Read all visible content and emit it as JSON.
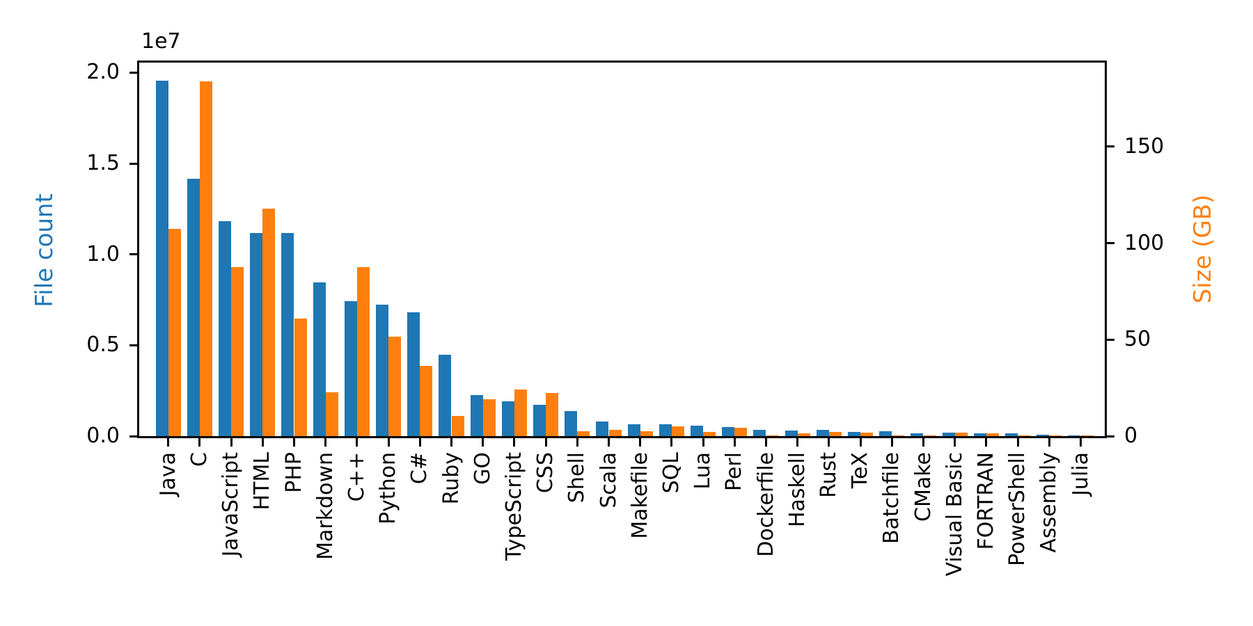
{
  "figure": {
    "offset_text": "1e7",
    "left_axis": {
      "label": "File count",
      "label_color": "#1f77b4",
      "tick_labels": [
        "0.0",
        "0.5",
        "1.0",
        "1.5",
        "2.0"
      ],
      "tick_values": [
        0,
        5000000,
        10000000,
        15000000,
        20000000
      ]
    },
    "right_axis": {
      "label": "Size (GB)",
      "label_color": "#ff7f0e",
      "tick_labels": [
        "0",
        "50",
        "100",
        "150"
      ],
      "tick_values": [
        0,
        50,
        100,
        150
      ]
    }
  },
  "chart_data": {
    "type": "bar",
    "title": "",
    "xlabel": "",
    "grid": false,
    "legend": "none",
    "categories": [
      "Java",
      "C",
      "JavaScript",
      "HTML",
      "PHP",
      "Markdown",
      "C++",
      "Python",
      "C#",
      "Ruby",
      "GO",
      "TypeScript",
      "CSS",
      "Shell",
      "Scala",
      "Makefile",
      "SQL",
      "Lua",
      "Perl",
      "Dockerfile",
      "Haskell",
      "Rust",
      "TeX",
      "Batchfile",
      "CMake",
      "Visual Basic",
      "FORTRAN",
      "PowerShell",
      "Assembly",
      "Julia"
    ],
    "series": [
      {
        "name": "File count",
        "axis": "left",
        "color": "#1f77b4",
        "values": [
          19550000,
          14150000,
          11830000,
          11190000,
          11160000,
          8460000,
          7410000,
          7220000,
          6810000,
          4480000,
          2250000,
          1900000,
          1730000,
          1390000,
          800000,
          650000,
          650000,
          570000,
          500000,
          340000,
          310000,
          330000,
          240000,
          260000,
          160000,
          190000,
          160000,
          160000,
          60000,
          40000
        ]
      },
      {
        "name": "Size (GB)",
        "axis": "right",
        "color": "#ff7f0e",
        "values": [
          107.5,
          184.0,
          87.5,
          117.8,
          60.8,
          22.8,
          87.6,
          51.4,
          36.4,
          10.5,
          19.0,
          24.1,
          22.5,
          2.5,
          3.3,
          2.6,
          5.1,
          2.2,
          4.2,
          0.5,
          1.5,
          2.2,
          1.9,
          0.3,
          0.25,
          1.9,
          1.55,
          0.3,
          0.5,
          0.2
        ]
      }
    ],
    "left_ylabel": "File count",
    "right_ylabel": "Size (GB)",
    "left_ylim": [
      0,
      20550000
    ],
    "right_ylim": [
      0,
      193.6
    ]
  }
}
